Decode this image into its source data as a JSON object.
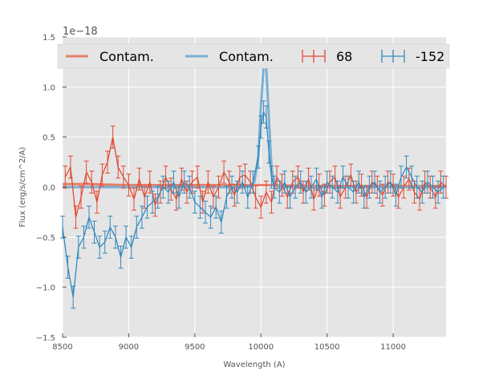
{
  "chart_data": {
    "type": "line",
    "title": "",
    "xlabel": "Wavelength (A)",
    "ylabel": "Flux (erg/s/cm^2/A)",
    "offset_label": "1e−18",
    "xlim": [
      8500,
      11400
    ],
    "ylim": [
      -1.5,
      1.5
    ],
    "xticks": [
      8500,
      9000,
      9500,
      10000,
      10500,
      11000
    ],
    "xtick_labels": [
      "8500",
      "9000",
      "9500",
      "10000",
      "10500",
      "11000"
    ],
    "yticks": [
      -1.5,
      -1.0,
      -0.5,
      0.0,
      0.5,
      1.0,
      1.5
    ],
    "ytick_labels": [
      "−1.5",
      "−1.0",
      "−0.5",
      "0.0",
      "0.5",
      "1.0",
      "1.5"
    ],
    "grid": true,
    "legend": {
      "location": "top",
      "entries": [
        {
          "label": "Contam.",
          "kind": "line",
          "color": "#e8806a"
        },
        {
          "label": "Contam.",
          "kind": "line",
          "color": "#7ab0d4"
        },
        {
          "label": "68",
          "kind": "errorbar",
          "color": "#e24a33"
        },
        {
          "label": "-152",
          "kind": "errorbar",
          "color": "#348abd"
        }
      ]
    },
    "series": [
      {
        "name": "Contam.",
        "color": "#e8806a",
        "kind": "line",
        "x": [
          8500,
          8700,
          9000,
          9500,
          10000,
          10500,
          11000,
          11400
        ],
        "y": [
          0.03,
          0.03,
          0.02,
          0.02,
          0.02,
          0.01,
          0.01,
          0.01
        ]
      },
      {
        "name": "Contam.",
        "color": "#7ab0d4",
        "kind": "line",
        "x": [
          8500,
          9000,
          9500,
          9900,
          9950,
          9980,
          10000,
          10020,
          10040,
          10060,
          10080,
          10100,
          10150,
          10500,
          11000,
          11400
        ],
        "y": [
          0.0,
          0.0,
          0.0,
          0.0,
          0.05,
          0.3,
          0.8,
          1.2,
          1.2,
          0.7,
          0.2,
          0.03,
          0.0,
          0.0,
          0.0,
          0.0
        ]
      },
      {
        "name": "68",
        "color": "#e24a33",
        "kind": "errorbar",
        "error": 0.11,
        "x": [
          8520,
          8560,
          8600,
          8640,
          8680,
          8720,
          8760,
          8800,
          8840,
          8880,
          8920,
          8960,
          9000,
          9040,
          9080,
          9120,
          9160,
          9200,
          9240,
          9280,
          9320,
          9360,
          9400,
          9440,
          9480,
          9520,
          9560,
          9600,
          9640,
          9680,
          9720,
          9760,
          9800,
          9840,
          9880,
          9920,
          9960,
          10000,
          10040,
          10080,
          10120,
          10160,
          10200,
          10240,
          10280,
          10320,
          10360,
          10400,
          10440,
          10480,
          10520,
          10560,
          10600,
          10640,
          10680,
          10720,
          10760,
          10800,
          10840,
          10880,
          10920,
          10960,
          11000,
          11040,
          11080,
          11120,
          11160,
          11200,
          11240,
          11280,
          11320,
          11360,
          11400
        ],
        "y": [
          0.1,
          0.2,
          -0.3,
          -0.1,
          0.15,
          0.05,
          -0.15,
          0.12,
          0.25,
          0.5,
          0.2,
          0.1,
          0.02,
          -0.12,
          0.08,
          -0.1,
          0.05,
          -0.18,
          -0.05,
          0.1,
          -0.02,
          -0.12,
          0.08,
          -0.05,
          0.05,
          0.1,
          -0.15,
          0.05,
          -0.1,
          0.0,
          0.15,
          0.05,
          -0.08,
          0.1,
          0.12,
          0.05,
          -0.1,
          -0.2,
          -0.05,
          -0.15,
          0.1,
          0.02,
          -0.1,
          0.05,
          0.1,
          -0.05,
          0.08,
          -0.12,
          0.02,
          -0.08,
          0.05,
          0.1,
          -0.1,
          0.0,
          0.12,
          -0.05,
          0.02,
          -0.1,
          0.05,
          0.0,
          -0.08,
          0.05,
          0.02,
          -0.1,
          0.0,
          0.08,
          -0.05,
          -0.12,
          0.05,
          0.0,
          -0.1,
          0.05,
          0.0
        ]
      },
      {
        "name": "-152",
        "color": "#348abd",
        "kind": "errorbar",
        "error": 0.11,
        "x": [
          8500,
          8540,
          8580,
          8620,
          8660,
          8700,
          8740,
          8780,
          8820,
          8860,
          8900,
          8940,
          8980,
          9020,
          9060,
          9100,
          9140,
          9180,
          9220,
          9260,
          9300,
          9340,
          9380,
          9420,
          9460,
          9500,
          9540,
          9580,
          9620,
          9660,
          9700,
          9740,
          9780,
          9820,
          9860,
          9900,
          9940,
          9980,
          10000,
          10020,
          10040,
          10060,
          10080,
          10100,
          10140,
          10180,
          10220,
          10260,
          10300,
          10340,
          10380,
          10420,
          10460,
          10500,
          10540,
          10580,
          10620,
          10660,
          10700,
          10740,
          10780,
          10820,
          10860,
          10900,
          10940,
          10980,
          11020,
          11060,
          11100,
          11140,
          11180,
          11220,
          11260,
          11300,
          11340,
          11380
        ],
        "y": [
          -0.4,
          -0.8,
          -1.1,
          -0.6,
          -0.5,
          -0.3,
          -0.45,
          -0.6,
          -0.55,
          -0.4,
          -0.5,
          -0.7,
          -0.5,
          -0.6,
          -0.4,
          -0.3,
          -0.2,
          -0.15,
          -0.1,
          0.0,
          -0.05,
          0.05,
          -0.1,
          0.05,
          0.0,
          -0.15,
          -0.2,
          -0.25,
          -0.3,
          -0.2,
          -0.35,
          -0.1,
          0.0,
          -0.05,
          0.05,
          -0.1,
          0.05,
          0.3,
          0.6,
          0.75,
          0.7,
          0.35,
          0.1,
          0.0,
          -0.05,
          0.05,
          -0.1,
          0.0,
          0.05,
          -0.05,
          0.0,
          0.08,
          -0.1,
          0.05,
          0.0,
          -0.05,
          0.1,
          0.0,
          -0.05,
          0.05,
          -0.1,
          0.0,
          0.05,
          -0.05,
          0.0,
          0.05,
          -0.08,
          0.1,
          0.2,
          0.1,
          0.0,
          -0.05,
          0.05,
          0.0,
          -0.05,
          0.0
        ]
      }
    ]
  }
}
